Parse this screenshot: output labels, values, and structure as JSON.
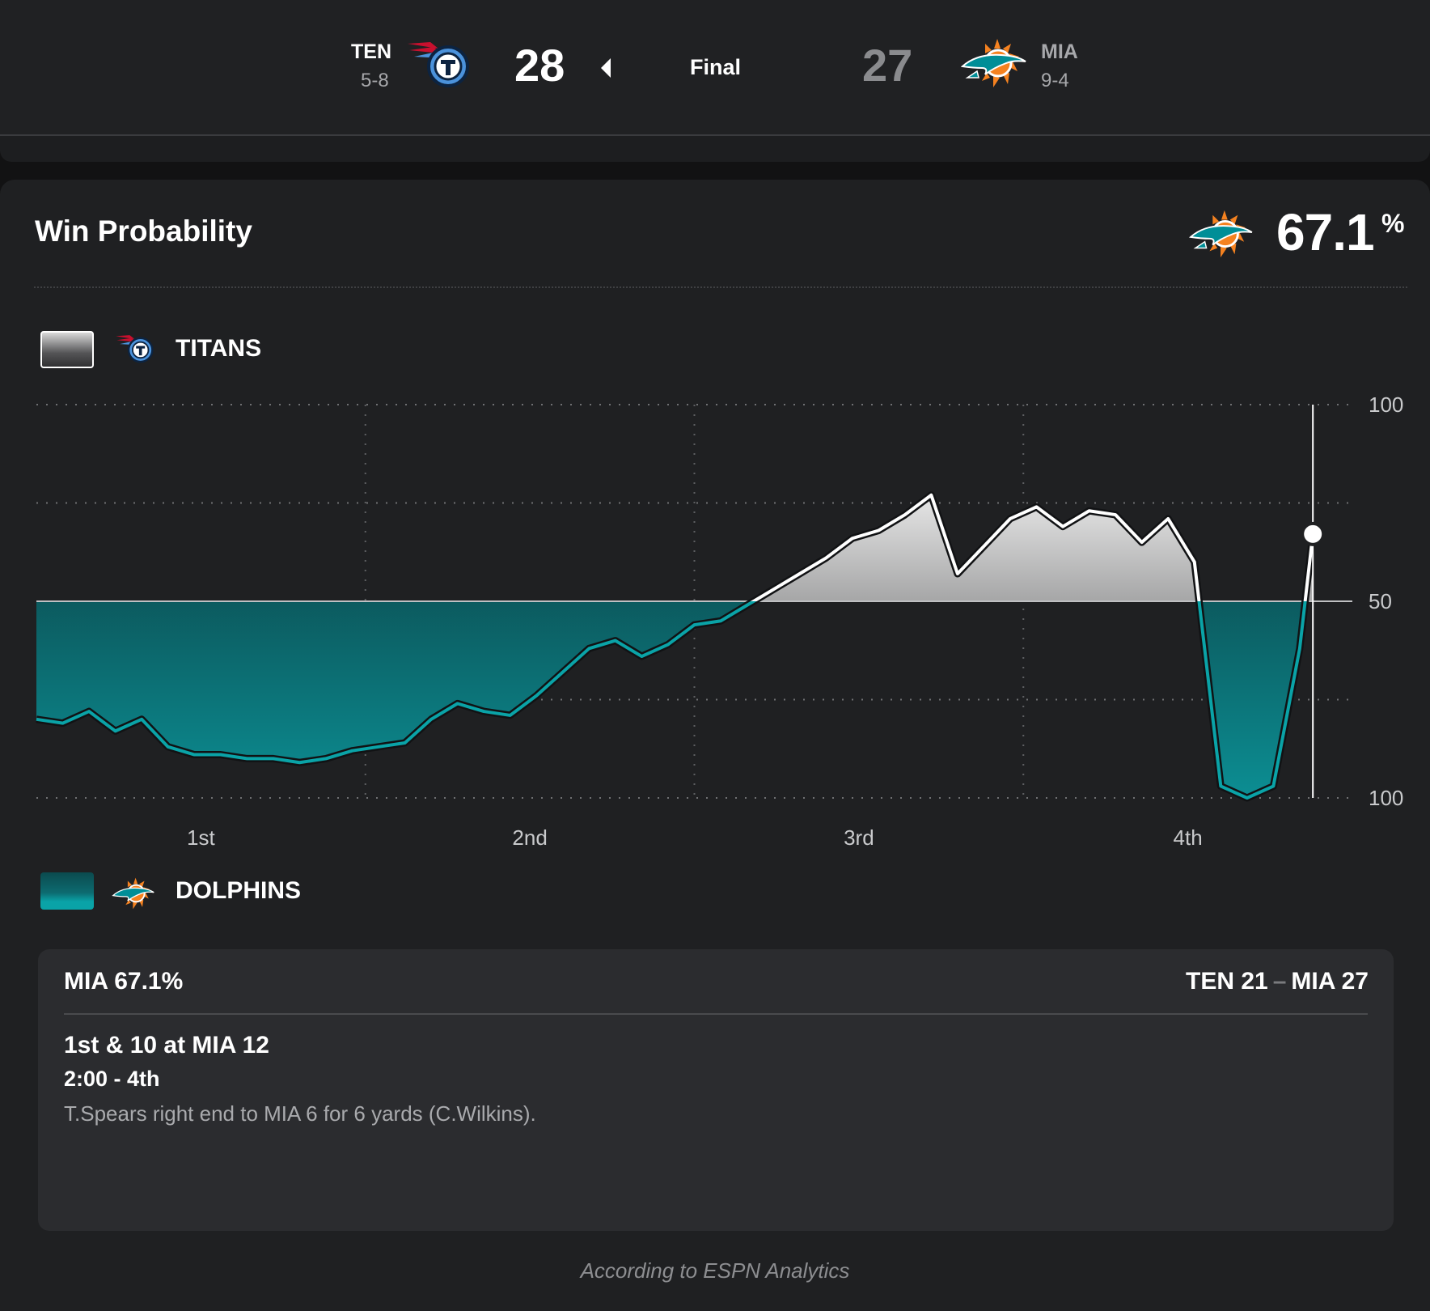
{
  "scoreboard": {
    "away": {
      "abbr": "TEN",
      "record": "5-8",
      "score": "28",
      "logo_icon": "titans-logo-icon",
      "winner": true
    },
    "status": "Final",
    "home": {
      "abbr": "MIA",
      "record": "9-4",
      "score": "27",
      "logo_icon": "dolphins-logo-icon"
    }
  },
  "win_probability": {
    "title": "Win Probability",
    "current_team_icon": "dolphins-logo-icon",
    "current_pct": "67.1",
    "current_pct_sign": "%",
    "legend": {
      "top": {
        "name": "TITANS",
        "icon": "titans-logo-icon"
      },
      "bottom": {
        "name": "DOLPHINS",
        "icon": "dolphins-logo-icon"
      }
    }
  },
  "chart_data": {
    "type": "area",
    "y_tick_labels": [
      "100",
      "50",
      "100"
    ],
    "x_tick_labels": [
      "1st",
      "2nd",
      "3rd",
      "4th"
    ],
    "ylim": [
      0,
      100
    ],
    "grid": true,
    "baseline_value": 50,
    "colors": {
      "dolphins": "#0aa3a7",
      "titans": "#ffffff"
    },
    "series": [
      {
        "name": "DOLPHINS",
        "x": [
          0,
          2,
          4,
          6,
          8,
          10,
          12,
          14,
          16,
          18,
          20,
          22,
          24,
          26,
          28,
          30,
          32,
          34,
          36,
          38,
          40,
          42,
          44,
          46,
          48,
          50,
          52,
          54,
          56,
          58,
          60,
          62,
          64,
          66,
          68,
          70,
          72,
          74,
          76,
          78,
          80,
          82,
          84,
          86,
          88,
          90,
          92,
          94,
          96,
          97
        ],
        "y": [
          20,
          19,
          22,
          17,
          20,
          13,
          11,
          11,
          10,
          10,
          9,
          10,
          12,
          13,
          14,
          20,
          24,
          22,
          21,
          26,
          32,
          38,
          40,
          36,
          39,
          44,
          45,
          49,
          53,
          57,
          61,
          66,
          68,
          72,
          77,
          57,
          64,
          71,
          74,
          69,
          73,
          72,
          65,
          71,
          60,
          3,
          0,
          3,
          38,
          67.1
        ]
      }
    ],
    "current_point": {
      "x": 97,
      "y": 67.1
    }
  },
  "play": {
    "probability": "MIA 67.1%",
    "score_away": "TEN 21",
    "score_dash": "–",
    "score_home": "MIA 27",
    "down_distance": "1st & 10 at MIA 12",
    "clock": "2:00 - 4th",
    "description": "T.Spears right end to MIA 6 for 6 yards (C.Wilkins)."
  },
  "footer": "According to ESPN Analytics"
}
